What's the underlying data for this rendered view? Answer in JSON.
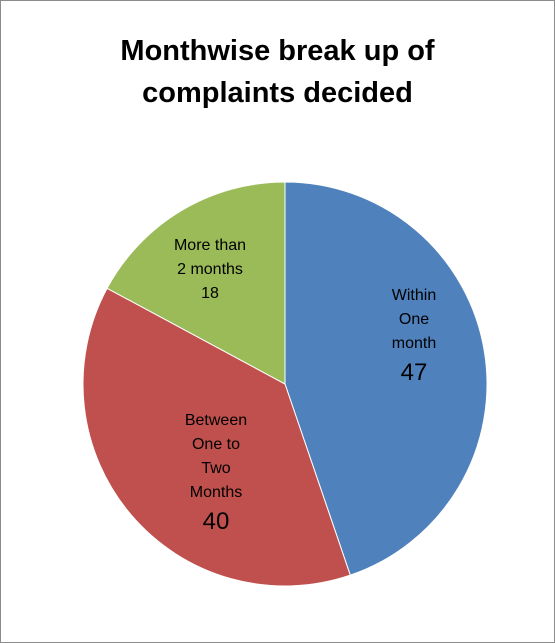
{
  "chart_data": {
    "type": "pie",
    "title_lines": [
      "Monthwise break up of",
      "complaints decided"
    ],
    "slices": [
      {
        "label_lines": [
          "Within",
          "One",
          "month"
        ],
        "value": 47,
        "color": "#4f81bd"
      },
      {
        "label_lines": [
          "Between",
          "One to",
          "Two",
          "Months"
        ],
        "value": 40,
        "color": "#c0504d"
      },
      {
        "label_lines": [
          "More than",
          "2 months"
        ],
        "value": 18,
        "color": "#9bbb59"
      }
    ],
    "start": "12 o'clock",
    "direction": "clockwise",
    "legend": "none",
    "data_labels": "inside"
  }
}
